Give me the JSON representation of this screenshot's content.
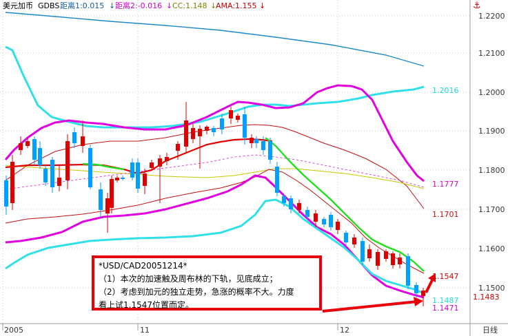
{
  "header": {
    "symbol": "美元加币",
    "indicator": "GDBS",
    "dist1": "距离1:0.015",
    "dist2": "距离2:-0.016",
    "cc": "CC:1.148",
    "ama": "AMA:1.155",
    "arrow_down": "↓",
    "anchor": "⚓"
  },
  "colors": {
    "bull": "#e00000",
    "bear": "#00a0ff",
    "magenta": "#e000e0",
    "cyan": "#30e0e8",
    "blue_ma": "#1e88c8",
    "darkred": "#c01010",
    "green": "#20e020",
    "olive": "#c8c800",
    "dashed": "#e040e0"
  },
  "price_axis": {
    "ticks": [
      "1.2200",
      "1.2100",
      "1.2000",
      "1.1900",
      "1.1800",
      "1.1700",
      "1.1600",
      "1.1500"
    ]
  },
  "time_axis": {
    "labels": [
      "2005",
      "11",
      "12"
    ],
    "right_label": "日线"
  },
  "price_labels": {
    "cyan_upper": "1.2016",
    "magenta_upper": "1.1777",
    "darkred_lower": "1.1701",
    "red_mid": "1.1547",
    "cyan_lower": "1.1487",
    "magenta_lower": "1.1471",
    "last_price": "1.1483"
  },
  "note": {
    "line1": "*USD/CAD20051214*",
    "line2": "（1）本次的加速触及周布林的下轨，见底成立；",
    "line3": "（2）考虑到加元的独立走势，急涨的概率不大。力度",
    "line4": "看上试1.1547位置而定。"
  }
}
